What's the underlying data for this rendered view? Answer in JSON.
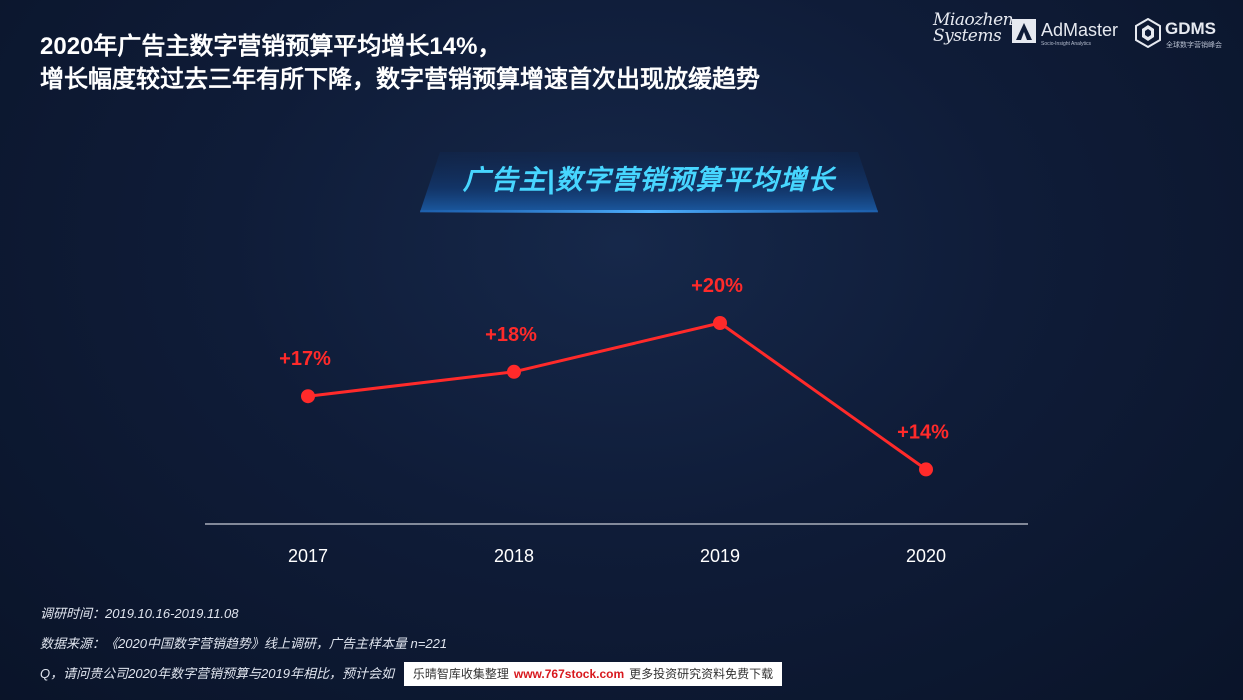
{
  "headline": {
    "line1": "2020年广告主数字营销预算平均增长14%，",
    "line2": "增长幅度较过去三年有所下降，数字营销预算增速首次出现放缓趋势"
  },
  "logos": {
    "miaozhen_line1": "Miaozhen",
    "miaozhen_line2": "Systems",
    "admaster": "AdMaster",
    "admaster_sub": "Socio-Insight Analytics",
    "gdms": "GDMS",
    "gdms_sub": "全球数字营销峰会"
  },
  "colors": {
    "line": "#ff2a2a",
    "label": "#ff2a2a",
    "axis": "#c8ccd6",
    "banner_text": "#47d6ff"
  },
  "chart_data": {
    "type": "line",
    "title": "广告主|数字营销预算平均增长",
    "categories": [
      "2017",
      "2018",
      "2019",
      "2020"
    ],
    "values": [
      17,
      18,
      20,
      14
    ],
    "data_labels": [
      "+17%",
      "+18%",
      "+20%",
      "+14%"
    ],
    "unit": "%",
    "ylim": [
      0,
      25
    ],
    "grid": false,
    "legend": "none"
  },
  "footnotes": {
    "time": "调研时间：2019.10.16-2019.11.08",
    "source": "数据来源：《2020中国数字营销趋势》线上调研，广告主样本量 n=221",
    "question": "Q，请问贵公司2020年数字营销预算与2019年相比，预计会如"
  },
  "watermark": {
    "prefix": "乐晴智库收集整理",
    "url": "www.767stock.com",
    "suffix": "更多投资研究资料免费下载"
  }
}
